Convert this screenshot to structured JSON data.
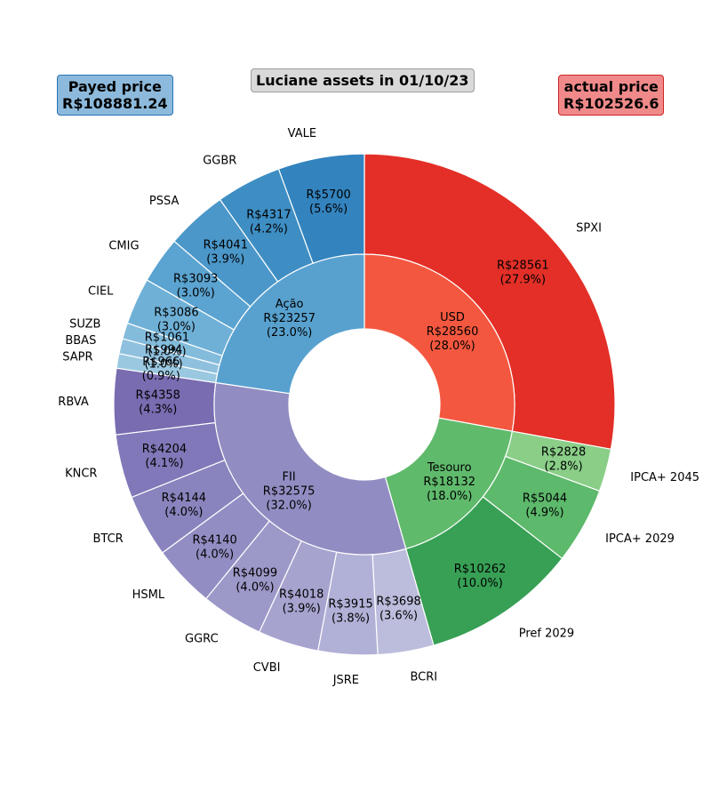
{
  "title": "Luciane assets in 01/10/23",
  "payed": {
    "label": "Payed price",
    "value": "R$108881.24"
  },
  "actual": {
    "label": "actual price",
    "value": "R$102526.6"
  },
  "colors": {
    "title_box": "#d9d9d9",
    "payed_box": "#8dbadc",
    "actual_box": "#f08a8a",
    "USD": "#f4573f",
    "Tesouro": "#60ba6c",
    "FII": "#918dc2",
    "Ação": "#58a1cf"
  },
  "chart_data": {
    "type": "pie",
    "subtype": "nested donut",
    "inner_ring": [
      {
        "name": "USD",
        "value": 28560,
        "value_label": "R$28560",
        "pct_label": "(28.0%)"
      },
      {
        "name": "Tesouro",
        "value": 18132,
        "value_label": "R$18132",
        "pct_label": "(18.0%)"
      },
      {
        "name": "FII",
        "value": 32575,
        "value_label": "R$32575",
        "pct_label": "(32.0%)"
      },
      {
        "name": "Ação",
        "value": 23257,
        "value_label": "R$23257",
        "pct_label": "(23.0%)"
      }
    ],
    "outer_ring": [
      {
        "name": "SPXI",
        "group": "USD",
        "value": 28561,
        "value_label": "R$28561",
        "pct_label": "(27.9%)",
        "color": "#e32f27"
      },
      {
        "name": "IPCA+ 2045",
        "group": "Tesouro",
        "value": 2828,
        "value_label": "R$2828",
        "pct_label": "(2.8%)",
        "color": "#8ace88"
      },
      {
        "name": "IPCA+ 2029",
        "group": "Tesouro",
        "value": 5044,
        "value_label": "R$5044",
        "pct_label": "(4.9%)",
        "color": "#5db96b"
      },
      {
        "name": "Pref 2029",
        "group": "Tesouro",
        "value": 10262,
        "value_label": "R$10262",
        "pct_label": "(10.0%)",
        "color": "#37a055"
      },
      {
        "name": "BCRI",
        "group": "FII",
        "value": 3698,
        "value_label": "R$3698",
        "pct_label": "(3.6%)",
        "color": "#bcbddc"
      },
      {
        "name": "JSRE",
        "group": "FII",
        "value": 3915,
        "value_label": "R$3915",
        "pct_label": "(3.8%)",
        "color": "#b1b0d6"
      },
      {
        "name": "CVBI",
        "group": "FII",
        "value": 4018,
        "value_label": "R$4018",
        "pct_label": "(3.9%)",
        "color": "#a6a3cf"
      },
      {
        "name": "GGRC",
        "group": "FII",
        "value": 4099,
        "value_label": "R$4099",
        "pct_label": "(4.0%)",
        "color": "#9c98c8"
      },
      {
        "name": "HSML",
        "group": "FII",
        "value": 4140,
        "value_label": "R$4140",
        "pct_label": "(4.0%)",
        "color": "#928ec3"
      },
      {
        "name": "BTCR",
        "group": "FII",
        "value": 4144,
        "value_label": "R$4144",
        "pct_label": "(4.0%)",
        "color": "#8984bd"
      },
      {
        "name": "KNCR",
        "group": "FII",
        "value": 4204,
        "value_label": "R$4204",
        "pct_label": "(4.1%)",
        "color": "#8078b8"
      },
      {
        "name": "RBVA",
        "group": "FII",
        "value": 4358,
        "value_label": "R$4358",
        "pct_label": "(4.3%)",
        "color": "#796cb1"
      },
      {
        "name": "SAPR",
        "group": "Ação",
        "value": 966,
        "value_label": "R$966",
        "pct_label": "(0.9%)",
        "color": "#9ac8e0"
      },
      {
        "name": "BBAS",
        "group": "Ação",
        "value": 994,
        "value_label": "R$994",
        "pct_label": "(1.0%)",
        "color": "#8fc1de"
      },
      {
        "name": "SUZB",
        "group": "Ação",
        "value": 1061,
        "value_label": "R$1061",
        "pct_label": "(1.0%)",
        "color": "#83bbdb"
      },
      {
        "name": "CIEL",
        "group": "Ação",
        "value": 3086,
        "value_label": "R$3086",
        "pct_label": "(3.0%)",
        "color": "#6fb0d7"
      },
      {
        "name": "CMIG",
        "group": "Ação",
        "value": 3093,
        "value_label": "R$3093",
        "pct_label": "(3.0%)",
        "color": "#5ba3d0"
      },
      {
        "name": "PSSA",
        "group": "Ação",
        "value": 4041,
        "value_label": "R$4041",
        "pct_label": "(3.9%)",
        "color": "#4b97c9"
      },
      {
        "name": "GGBR",
        "group": "Ação",
        "value": 4317,
        "value_label": "R$4317",
        "pct_label": "(4.2%)",
        "color": "#3e8ec4"
      },
      {
        "name": "VALE",
        "group": "Ação",
        "value": 5700,
        "value_label": "R$5700",
        "pct_label": "(5.6%)",
        "color": "#3383be"
      }
    ]
  }
}
